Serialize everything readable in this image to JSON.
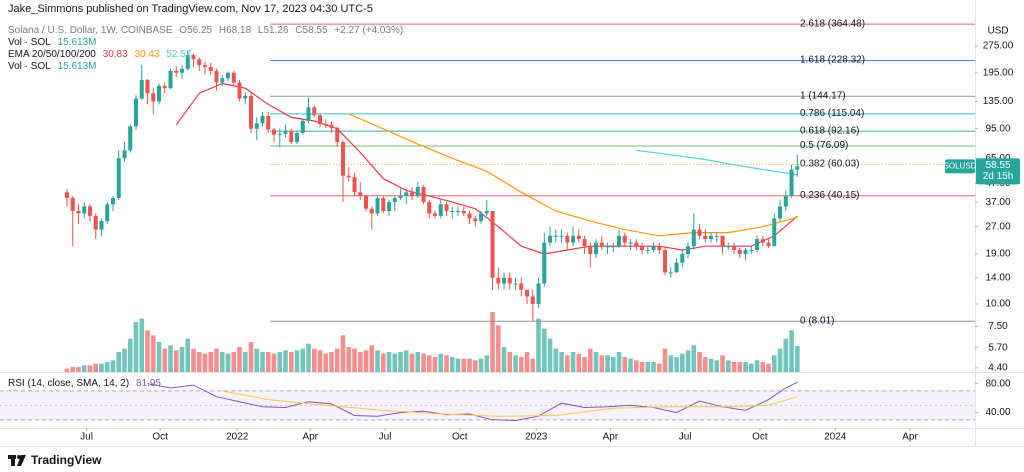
{
  "header": {
    "publisher": "Jake_Simmons published on TradingView.com, Nov 17, 2023 04:30 UTC-5",
    "brand": "TradingView"
  },
  "chart_data": {
    "type": "candlestick",
    "title": "Solana / U.S. Dollar, 1W, COINBASE",
    "legend_values": [
      "O56.25",
      "H68.18",
      "L51.26",
      "C58.55",
      "+2.27 (+4.03%)"
    ],
    "up_color": "#26a69a",
    "down_color": "#ef5350",
    "candles": [
      [
        42,
        44,
        35,
        39
      ],
      [
        39,
        40,
        21,
        33
      ],
      [
        33,
        36,
        28,
        32
      ],
      [
        32,
        37,
        30,
        35
      ],
      [
        35,
        36,
        29,
        31
      ],
      [
        31,
        32,
        23,
        26
      ],
      [
        26,
        30,
        24,
        29
      ],
      [
        29,
        37,
        28,
        36
      ],
      [
        36,
        40,
        33,
        39
      ],
      [
        39,
        72,
        38,
        65
      ],
      [
        65,
        80,
        62,
        72
      ],
      [
        72,
        100,
        70,
        98
      ],
      [
        98,
        146,
        94,
        140
      ],
      [
        140,
        216,
        138,
        178
      ],
      [
        178,
        180,
        130,
        150
      ],
      [
        150,
        160,
        115,
        135
      ],
      [
        135,
        170,
        130,
        165
      ],
      [
        165,
        172,
        150,
        160
      ],
      [
        160,
        205,
        158,
        200
      ],
      [
        200,
        212,
        185,
        195
      ],
      [
        195,
        215,
        180,
        205
      ],
      [
        205,
        260,
        200,
        245
      ],
      [
        245,
        250,
        210,
        232
      ],
      [
        232,
        238,
        200,
        215
      ],
      [
        215,
        225,
        190,
        210
      ],
      [
        210,
        222,
        190,
        200
      ],
      [
        200,
        205,
        155,
        172
      ],
      [
        172,
        190,
        165,
        182
      ],
      [
        182,
        198,
        175,
        195
      ],
      [
        195,
        200,
        165,
        172
      ],
      [
        172,
        178,
        135,
        140
      ],
      [
        140,
        152,
        130,
        145
      ],
      [
        145,
        150,
        90,
        95
      ],
      [
        95,
        110,
        82,
        102
      ],
      [
        102,
        118,
        98,
        112
      ],
      [
        112,
        118,
        90,
        94
      ],
      [
        94,
        96,
        80,
        88
      ],
      [
        88,
        95,
        75,
        89
      ],
      [
        89,
        100,
        85,
        92
      ],
      [
        92,
        95,
        78,
        80
      ],
      [
        80,
        92,
        78,
        90
      ],
      [
        90,
        108,
        88,
        105
      ],
      [
        105,
        142,
        102,
        125
      ],
      [
        125,
        128,
        110,
        113
      ],
      [
        113,
        116,
        97,
        101
      ],
      [
        101,
        108,
        96,
        100
      ],
      [
        100,
        104,
        90,
        96
      ],
      [
        96,
        98,
        75,
        80
      ],
      [
        80,
        82,
        37,
        52
      ],
      [
        52,
        58,
        48,
        51
      ],
      [
        51,
        54,
        40,
        42
      ],
      [
        42,
        48,
        38,
        40
      ],
      [
        40,
        41,
        33,
        34
      ],
      [
        34,
        35,
        26,
        32
      ],
      [
        32,
        40,
        31,
        39
      ],
      [
        39,
        40,
        32,
        33
      ],
      [
        33,
        38,
        31,
        37
      ],
      [
        37,
        40,
        33,
        39
      ],
      [
        39,
        44,
        38,
        40
      ],
      [
        40,
        44,
        36,
        42
      ],
      [
        42,
        45,
        38,
        40
      ],
      [
        40,
        48,
        39,
        45
      ],
      [
        45,
        46,
        36,
        37
      ],
      [
        37,
        38,
        30,
        32
      ],
      [
        32,
        33,
        30,
        31
      ],
      [
        31,
        38,
        30,
        36
      ],
      [
        36,
        37,
        31,
        33
      ],
      [
        33,
        35,
        30,
        33
      ],
      [
        33,
        35,
        31,
        33
      ],
      [
        33,
        35,
        31,
        32
      ],
      [
        32,
        33,
        28,
        30
      ],
      [
        30,
        31,
        27,
        29
      ],
      [
        29,
        33,
        28,
        32
      ],
      [
        32,
        38,
        31,
        33
      ],
      [
        33,
        33,
        12,
        14
      ],
      [
        14,
        16,
        12,
        13
      ],
      [
        13,
        15,
        12,
        14
      ],
      [
        14,
        15,
        12,
        13
      ],
      [
        13,
        14,
        12,
        13
      ],
      [
        13,
        14,
        11,
        12
      ],
      [
        12,
        12,
        10,
        11
      ],
      [
        11,
        12,
        8,
        10
      ],
      [
        10,
        14,
        9.5,
        13
      ],
      [
        13,
        25,
        12.5,
        22
      ],
      [
        22,
        27,
        21,
        24
      ],
      [
        24,
        26,
        22,
        24
      ],
      [
        24,
        26,
        22,
        24
      ],
      [
        24,
        25,
        20,
        22
      ],
      [
        22,
        27,
        21,
        24
      ],
      [
        24,
        26,
        22,
        23
      ],
      [
        23,
        24,
        19,
        21
      ],
      [
        21,
        22,
        16,
        19
      ],
      [
        19,
        23,
        18,
        22
      ],
      [
        22,
        24,
        20,
        21
      ],
      [
        21,
        22,
        19,
        21
      ],
      [
        21,
        22,
        19.5,
        21
      ],
      [
        21,
        26,
        20.5,
        24
      ],
      [
        24,
        25,
        21,
        22
      ],
      [
        22,
        23,
        20,
        22
      ],
      [
        22,
        23,
        20,
        21
      ],
      [
        21,
        22,
        19,
        20
      ],
      [
        20,
        21,
        19,
        20
      ],
      [
        20,
        22,
        19.5,
        21
      ],
      [
        21,
        22,
        19,
        20
      ],
      [
        20,
        21,
        14.5,
        15
      ],
      [
        15,
        16,
        14,
        15
      ],
      [
        15,
        18,
        15,
        17
      ],
      [
        17,
        20,
        16,
        19
      ],
      [
        19,
        22,
        18,
        21
      ],
      [
        21,
        32,
        20,
        26
      ],
      [
        26,
        28,
        23,
        24
      ],
      [
        24,
        26,
        22,
        23
      ],
      [
        23,
        25,
        22,
        24
      ],
      [
        24,
        25,
        22,
        24
      ],
      [
        24,
        24,
        19,
        21
      ],
      [
        21,
        22,
        20,
        21
      ],
      [
        21,
        22,
        19,
        20
      ],
      [
        20,
        20.5,
        18,
        19
      ],
      [
        19,
        20.5,
        17.5,
        20
      ],
      [
        20,
        21,
        19,
        20
      ],
      [
        20,
        24,
        19.5,
        23
      ],
      [
        23,
        24,
        21,
        22
      ],
      [
        22,
        23,
        20.5,
        21
      ],
      [
        21,
        32,
        21,
        30
      ],
      [
        30,
        38,
        29,
        35
      ],
      [
        35,
        43,
        33,
        40
      ],
      [
        40,
        60,
        39,
        56.28
      ],
      [
        56.25,
        68.18,
        51.26,
        58.55
      ]
    ],
    "xlim": [
      -11.65,
      157.9
    ],
    "xticks": [
      {
        "value": 3.4,
        "label": "Jul"
      },
      {
        "value": 16.2,
        "label": "Oct"
      },
      {
        "value": 29.6,
        "label": "2022"
      },
      {
        "value": 42.3,
        "label": "Apr"
      },
      {
        "value": 55.3,
        "label": "Jul"
      },
      {
        "value": 68.3,
        "label": "Oct"
      },
      {
        "value": 81.6,
        "label": "2023"
      },
      {
        "value": 94.5,
        "label": "Apr"
      },
      {
        "value": 107.5,
        "label": "Jul"
      },
      {
        "value": 120.5,
        "label": "Oct"
      },
      {
        "value": 133.6,
        "label": "2024"
      },
      {
        "value": 146.6,
        "label": "Apr"
      }
    ],
    "ylim": [
      4.17,
      497
    ],
    "log_scale": true,
    "yticks": [
      {
        "value": 275,
        "label": "275.00"
      },
      {
        "value": 195,
        "label": "195.00"
      },
      {
        "value": 135,
        "label": "135.00"
      },
      {
        "value": 95,
        "label": "95.00"
      },
      {
        "value": 65,
        "label": "65.00"
      },
      {
        "value": 47,
        "label": "47.00"
      },
      {
        "value": 37,
        "label": "37.00"
      },
      {
        "value": 27,
        "label": "27.00"
      },
      {
        "value": 19,
        "label": "19.00"
      },
      {
        "value": 14,
        "label": "14.00"
      },
      {
        "value": 10,
        "label": "10.00"
      },
      {
        "value": 7.5,
        "label": "7.50"
      },
      {
        "value": 5.7,
        "label": "5.70"
      },
      {
        "value": 4.4,
        "label": "4.40"
      }
    ],
    "y_axis_label": "USD",
    "symbol": "SOLUSD",
    "countdown": "2d 15h",
    "volume": {
      "name": "Vol · SOL",
      "legend_value": "15.613M",
      "ylim": [
        0,
        60
      ],
      "values": [
        2,
        3,
        3,
        4,
        4,
        5,
        5,
        6,
        7,
        12,
        14,
        20,
        30,
        32,
        25,
        22,
        18,
        14,
        16,
        13,
        15,
        20,
        14,
        12,
        11,
        12,
        14,
        12,
        11,
        12,
        15,
        12,
        18,
        14,
        12,
        12,
        11,
        12,
        13,
        12,
        13,
        14,
        17,
        14,
        13,
        11,
        12,
        14,
        22,
        15,
        14,
        12,
        13,
        16,
        13,
        11,
        12,
        11,
        12,
        13,
        11,
        12,
        11,
        10,
        9,
        11,
        10,
        9,
        8,
        8,
        8,
        7,
        8,
        10,
        36,
        28,
        15,
        12,
        10,
        9,
        12,
        8,
        32,
        26,
        20,
        14,
        12,
        10,
        12,
        11,
        9,
        14,
        12,
        10,
        10,
        9,
        12,
        9,
        8,
        7,
        6,
        6,
        6,
        5,
        14,
        10,
        9,
        11,
        13,
        16,
        12,
        9,
        8,
        7,
        10,
        7,
        6,
        6,
        6,
        5,
        7,
        6,
        5,
        10,
        14,
        20,
        25,
        15.613
      ]
    },
    "ema": {
      "name": "EMA 20/50/100/200",
      "series": [
        {
          "color": "#f23645",
          "x": [
            19,
            23,
            27,
            31,
            35,
            39,
            43,
            47,
            51,
            55,
            59,
            63,
            67,
            71,
            75,
            79,
            83,
            87,
            91,
            95,
            99,
            103,
            107,
            111,
            115,
            119,
            123,
            127
          ],
          "values": [
            100,
            150,
            170,
            160,
            130,
            110,
            105,
            95,
            70,
            50,
            43,
            40,
            37,
            34,
            27,
            21,
            19,
            20,
            21,
            21,
            21,
            21,
            20,
            21,
            21,
            21,
            24,
            30.83
          ]
        },
        {
          "color": "#ff9800",
          "x": [
            49,
            55,
            61,
            67,
            73,
            79,
            85,
            91,
            97,
            103,
            109,
            115,
            121,
            127
          ],
          "values": [
            115,
            95,
            78,
            65,
            55,
            42,
            33,
            29,
            26,
            24,
            25,
            25,
            27,
            30.43
          ]
        },
        {
          "color": "#4dd0e1",
          "x": [
            99,
            105,
            111,
            117,
            123,
            127
          ],
          "values": [
            72,
            68,
            64,
            59,
            55,
            52.57
          ]
        }
      ]
    },
    "fib_levels": [
      {
        "label": "2.618 (364.48)",
        "value": 364.48,
        "color": "#f23645"
      },
      {
        "label": "1.618 (228.32)",
        "value": 228.32,
        "color": "#2962ff"
      },
      {
        "label": "1 (144.17)",
        "value": 144.17,
        "color": "#787b86"
      },
      {
        "label": "0.786 (115.04)",
        "value": 115.04,
        "color": "#00acc1"
      },
      {
        "label": "0.618 (92.16)",
        "value": 92.16,
        "color": "#089981"
      },
      {
        "label": "0.5 (76.09)",
        "value": 76.09,
        "color": "#4caf50"
      },
      {
        "label": "0.382 (60.03)",
        "value": 60.03,
        "color": "#ff9800",
        "style": "dotted"
      },
      {
        "label": "0.236 (40.15)",
        "value": 40.15,
        "color": "#f23645"
      },
      {
        "label": "0 (8.01)",
        "value": 8.01,
        "color": "#787b86"
      }
    ],
    "rsi": {
      "name": "RSI (14, close, SMA, 14, 2)",
      "ylim": [
        18.7,
        93.3
      ],
      "band": [
        30,
        70
      ],
      "yticks": [
        {
          "value": 80,
          "label": "80.00"
        },
        {
          "value": 40,
          "label": "40.00"
        }
      ],
      "series": [
        {
          "color": "#7e57c2",
          "x": [
            14,
            18,
            22,
            26,
            30,
            34,
            38,
            42,
            46,
            50,
            54,
            58,
            62,
            66,
            70,
            74,
            78,
            82,
            86,
            90,
            94,
            98,
            102,
            106,
            110,
            114,
            118,
            122,
            125,
            127
          ],
          "values": [
            80,
            74,
            78,
            62,
            55,
            48,
            47,
            55,
            52,
            36,
            35,
            40,
            42,
            37,
            38,
            30,
            29,
            35,
            53,
            47,
            48,
            50,
            47,
            40,
            56,
            48,
            43,
            58,
            74,
            81.95
          ]
        },
        {
          "color": "#f7c948",
          "x": [
            27,
            35,
            45,
            55,
            65,
            75,
            85,
            95,
            105,
            115,
            122,
            127
          ],
          "values": [
            70,
            58,
            50,
            43,
            38,
            35,
            36,
            46,
            48,
            48,
            50,
            62
          ]
        }
      ]
    }
  }
}
